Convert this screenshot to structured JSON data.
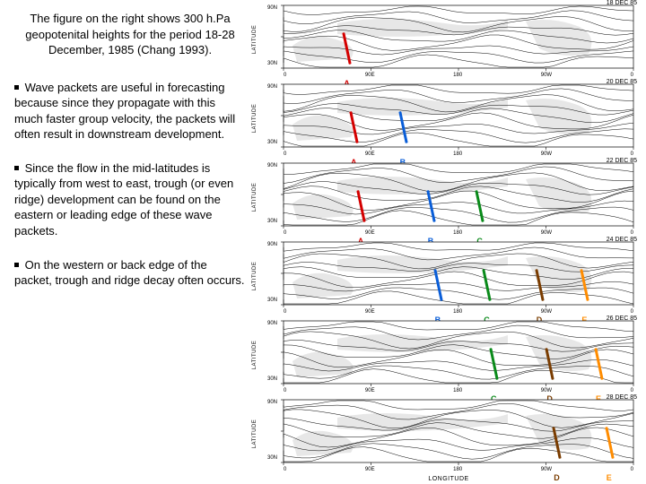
{
  "intro": "The figure on the right shows 300 h.Pa geopotenital heights for the period 18-28 December, 1985 (Chang 1993).",
  "paragraphs": [
    "Wave packets are useful in forecasting because since they propagate with this much faster group velocity, the packets will often result in downstream development.",
    "Since the flow in the mid-latitudes is typically from west to east, trough (or even ridge) development can be found on the eastern or leading edge of these wave packets.",
    "On the western or back edge of the packet, trough and ridge decay often occurs."
  ],
  "chart": {
    "yaxis_label": "LATITUDE",
    "xaxis_label": "LONGITUDE",
    "x_ticks": [
      "0",
      "90E",
      "180",
      "90W",
      "0"
    ],
    "y_ticks": [
      "90N",
      "30N"
    ],
    "line_color": "#000000",
    "bg_color": "#ffffff",
    "marker_colors": {
      "A": "#d40000",
      "B": "#0a5ed8",
      "C": "#0a8a1a",
      "D": "#7a3c00",
      "E": "#ff8c00"
    },
    "panels": [
      {
        "date": "18 DEC 85",
        "markers": [
          {
            "id": "A",
            "x": 0.18
          }
        ]
      },
      {
        "date": "20 DEC 85",
        "markers": [
          {
            "id": "A",
            "x": 0.2
          },
          {
            "id": "B",
            "x": 0.34
          }
        ]
      },
      {
        "date": "22 DEC 85",
        "markers": [
          {
            "id": "A",
            "x": 0.22
          },
          {
            "id": "B",
            "x": 0.42
          },
          {
            "id": "C",
            "x": 0.56
          }
        ]
      },
      {
        "date": "24 DEC 85",
        "markers": [
          {
            "id": "B",
            "x": 0.44
          },
          {
            "id": "C",
            "x": 0.58
          },
          {
            "id": "D",
            "x": 0.73
          },
          {
            "id": "E",
            "x": 0.86
          }
        ]
      },
      {
        "date": "26 DEC 85",
        "markers": [
          {
            "id": "C",
            "x": 0.6
          },
          {
            "id": "D",
            "x": 0.76
          },
          {
            "id": "E",
            "x": 0.9
          }
        ]
      },
      {
        "date": "28 DEC 85",
        "markers": [
          {
            "id": "D",
            "x": 0.78
          },
          {
            "id": "E",
            "x": 0.93
          }
        ]
      }
    ]
  }
}
